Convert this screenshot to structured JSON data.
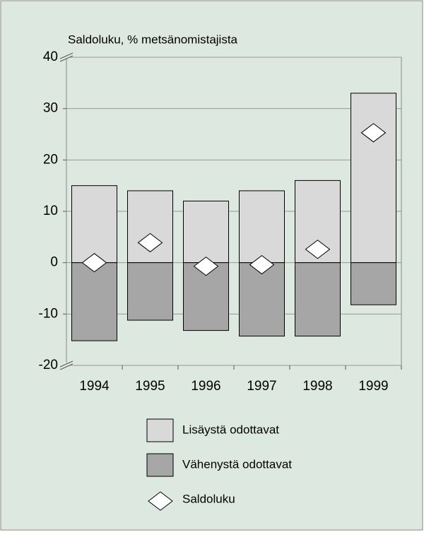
{
  "chart_data": {
    "type": "bar",
    "y_label": "Saldoluku, % metsänomistajista",
    "categories": [
      "1994",
      "1995",
      "1996",
      "1997",
      "1998",
      "1999"
    ],
    "series": [
      {
        "name": "Lisäystä odottavat",
        "color": "#d9d9d9",
        "values": [
          15,
          14,
          12,
          14,
          16,
          33
        ]
      },
      {
        "name": "Vähenystä odottavat",
        "color": "#a6a6a6",
        "values": [
          -15.2,
          -11.2,
          -13.2,
          -14.3,
          -14.3,
          -8.2
        ]
      },
      {
        "name": "Saldoluku",
        "color": "#ffffff",
        "marker": "diamond",
        "values": [
          0,
          3.9,
          -0.7,
          -0.4,
          2.6,
          25.3
        ]
      }
    ],
    "ylim": [
      -20,
      40
    ],
    "yticks": [
      -20,
      -10,
      0,
      10,
      20,
      30,
      40
    ],
    "grid": true
  }
}
